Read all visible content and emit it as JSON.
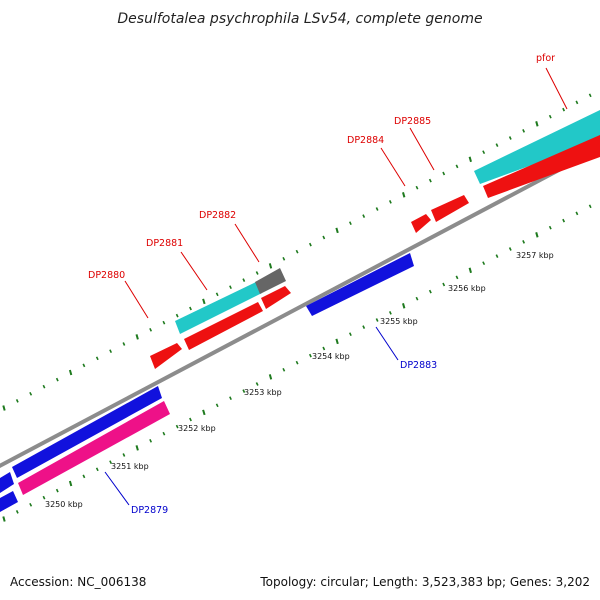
{
  "title": "Desulfotalea psychrophila LSv54, complete genome",
  "footer": {
    "accession": "Accession: NC_006138",
    "summary": "Topology: circular; Length: 3,523,383 bp; Genes: 3,202"
  },
  "colors": {
    "backbone": "#8c8c8c",
    "tick": "#1e7a1e",
    "red": "#ee1111",
    "blue": "#1111dd",
    "cyan": "#22c8c8",
    "magenta": "#ee1188",
    "gray": "#666666",
    "label_red": "#dd0000",
    "label_blue": "#0000cc"
  },
  "ruler_labels": [
    "3250 kbp",
    "3251 kbp",
    "3252 kbp",
    "3253 kbp",
    "3254 kbp",
    "3255 kbp",
    "3256 kbp",
    "3257 kbp"
  ],
  "gene_labels": [
    "DP2879",
    "DP2880",
    "DP2881",
    "DP2882",
    "DP2883",
    "DP2884",
    "DP2885",
    "pfor"
  ]
}
